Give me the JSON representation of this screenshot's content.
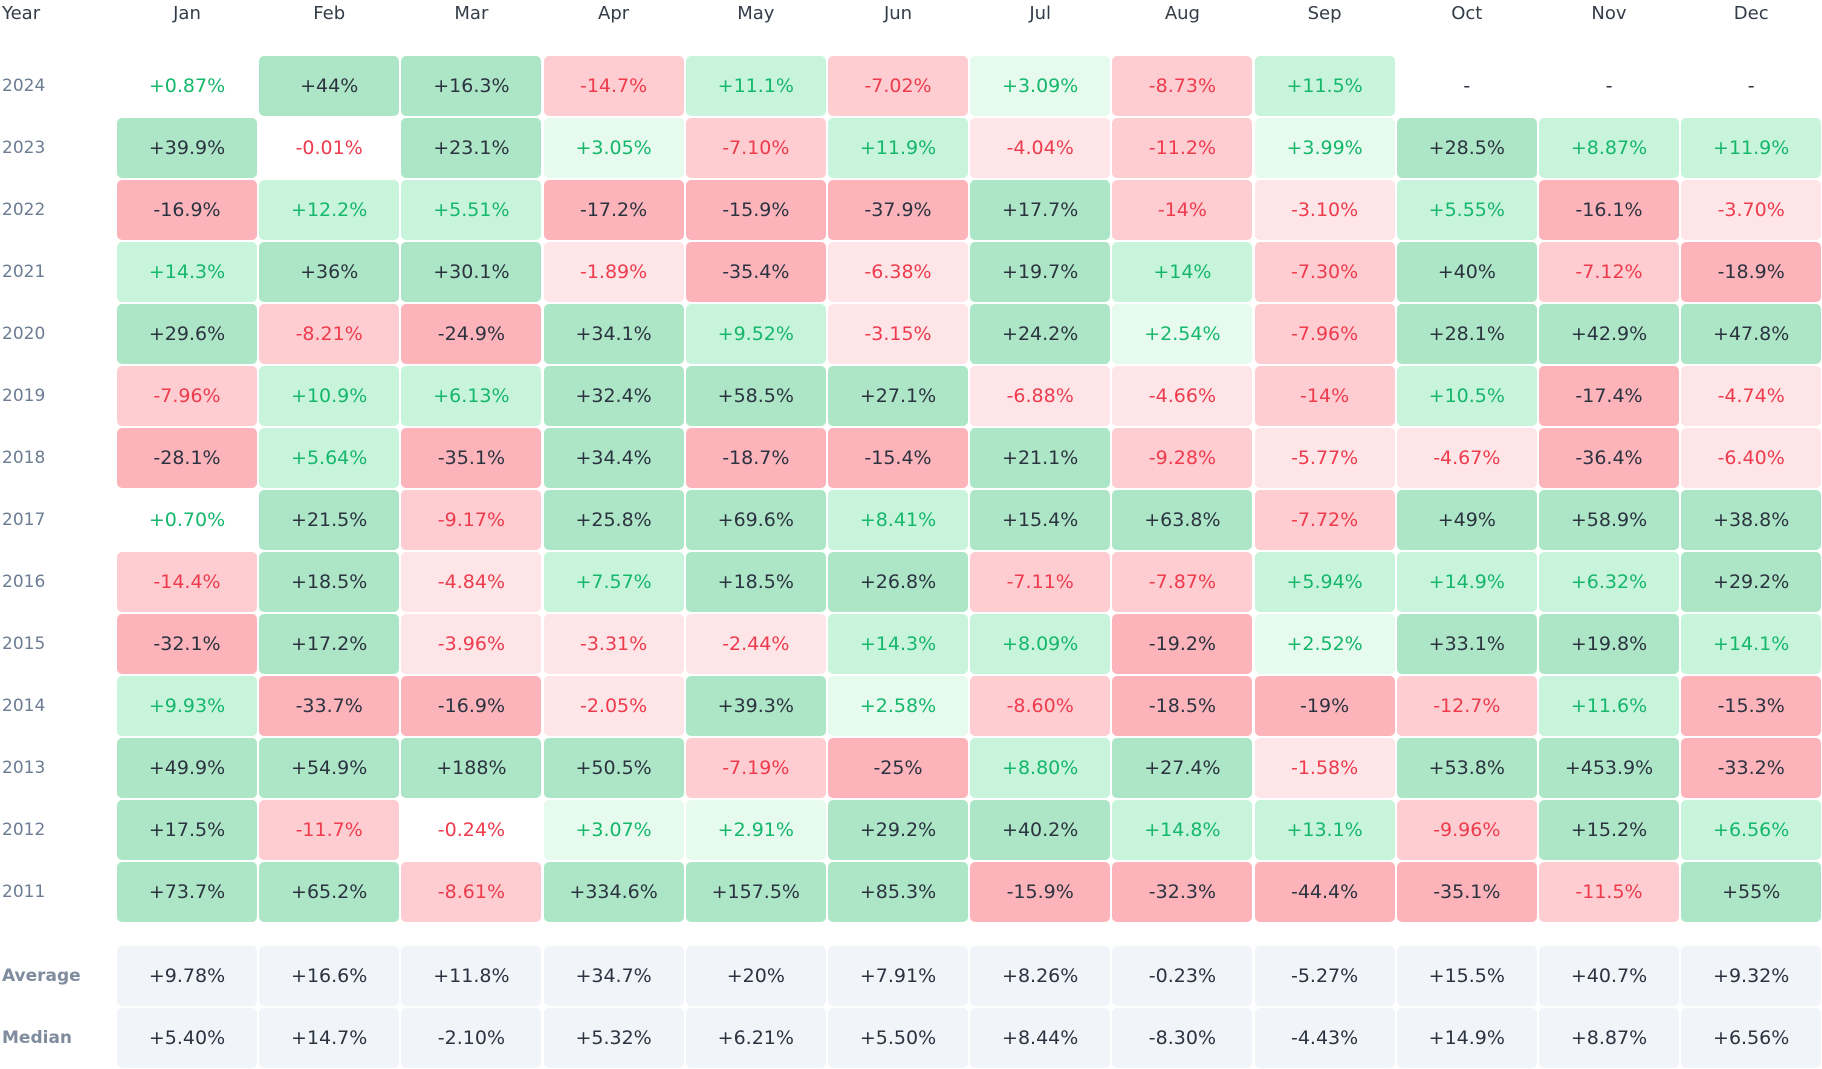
{
  "chart_data": {
    "type": "heatmap",
    "corner_label": "Year",
    "months": [
      "Jan",
      "Feb",
      "Mar",
      "Apr",
      "May",
      "Jun",
      "Jul",
      "Aug",
      "Sep",
      "Oct",
      "Nov",
      "Dec"
    ],
    "rows": [
      {
        "year": "2024",
        "cells": [
          "+0.87%",
          "+44%",
          "+16.3%",
          "-14.7%",
          "+11.1%",
          "-7.02%",
          "+3.09%",
          "-8.73%",
          "+11.5%",
          "-",
          "-",
          "-"
        ]
      },
      {
        "year": "2023",
        "cells": [
          "+39.9%",
          "-0.01%",
          "+23.1%",
          "+3.05%",
          "-7.10%",
          "+11.9%",
          "-4.04%",
          "-11.2%",
          "+3.99%",
          "+28.5%",
          "+8.87%",
          "+11.9%"
        ]
      },
      {
        "year": "2022",
        "cells": [
          "-16.9%",
          "+12.2%",
          "+5.51%",
          "-17.2%",
          "-15.9%",
          "-37.9%",
          "+17.7%",
          "-14%",
          "-3.10%",
          "+5.55%",
          "-16.1%",
          "-3.70%"
        ]
      },
      {
        "year": "2021",
        "cells": [
          "+14.3%",
          "+36%",
          "+30.1%",
          "-1.89%",
          "-35.4%",
          "-6.38%",
          "+19.7%",
          "+14%",
          "-7.30%",
          "+40%",
          "-7.12%",
          "-18.9%"
        ]
      },
      {
        "year": "2020",
        "cells": [
          "+29.6%",
          "-8.21%",
          "-24.9%",
          "+34.1%",
          "+9.52%",
          "-3.15%",
          "+24.2%",
          "+2.54%",
          "-7.96%",
          "+28.1%",
          "+42.9%",
          "+47.8%"
        ]
      },
      {
        "year": "2019",
        "cells": [
          "-7.96%",
          "+10.9%",
          "+6.13%",
          "+32.4%",
          "+58.5%",
          "+27.1%",
          "-6.88%",
          "-4.66%",
          "-14%",
          "+10.5%",
          "-17.4%",
          "-4.74%"
        ]
      },
      {
        "year": "2018",
        "cells": [
          "-28.1%",
          "+5.64%",
          "-35.1%",
          "+34.4%",
          "-18.7%",
          "-15.4%",
          "+21.1%",
          "-9.28%",
          "-5.77%",
          "-4.67%",
          "-36.4%",
          "-6.40%"
        ]
      },
      {
        "year": "2017",
        "cells": [
          "+0.70%",
          "+21.5%",
          "-9.17%",
          "+25.8%",
          "+69.6%",
          "+8.41%",
          "+15.4%",
          "+63.8%",
          "-7.72%",
          "+49%",
          "+58.9%",
          "+38.8%"
        ]
      },
      {
        "year": "2016",
        "cells": [
          "-14.4%",
          "+18.5%",
          "-4.84%",
          "+7.57%",
          "+18.5%",
          "+26.8%",
          "-7.11%",
          "-7.87%",
          "+5.94%",
          "+14.9%",
          "+6.32%",
          "+29.2%"
        ]
      },
      {
        "year": "2015",
        "cells": [
          "-32.1%",
          "+17.2%",
          "-3.96%",
          "-3.31%",
          "-2.44%",
          "+14.3%",
          "+8.09%",
          "-19.2%",
          "+2.52%",
          "+33.1%",
          "+19.8%",
          "+14.1%"
        ]
      },
      {
        "year": "2014",
        "cells": [
          "+9.93%",
          "-33.7%",
          "-16.9%",
          "-2.05%",
          "+39.3%",
          "+2.58%",
          "-8.60%",
          "-18.5%",
          "-19%",
          "-12.7%",
          "+11.6%",
          "-15.3%"
        ]
      },
      {
        "year": "2013",
        "cells": [
          "+49.9%",
          "+54.9%",
          "+188%",
          "+50.5%",
          "-7.19%",
          "-25%",
          "+8.80%",
          "+27.4%",
          "-1.58%",
          "+53.8%",
          "+453.9%",
          "-33.2%"
        ]
      },
      {
        "year": "2012",
        "cells": [
          "+17.5%",
          "-11.7%",
          "-0.24%",
          "+3.07%",
          "+2.91%",
          "+29.2%",
          "+40.2%",
          "+14.8%",
          "+13.1%",
          "-9.96%",
          "+15.2%",
          "+6.56%"
        ]
      },
      {
        "year": "2011",
        "cells": [
          "+73.7%",
          "+65.2%",
          "-8.61%",
          "+334.6%",
          "+157.5%",
          "+85.3%",
          "-15.9%",
          "-32.3%",
          "-44.4%",
          "-35.1%",
          "-11.5%",
          "+55%"
        ]
      }
    ],
    "stats": [
      {
        "label": "Average",
        "cells": [
          "+9.78%",
          "+16.6%",
          "+11.8%",
          "+34.7%",
          "+20%",
          "+7.91%",
          "+8.26%",
          "-0.23%",
          "-5.27%",
          "+15.5%",
          "+40.7%",
          "+9.32%"
        ]
      },
      {
        "label": "Median",
        "cells": [
          "+5.40%",
          "+14.7%",
          "-2.10%",
          "+5.32%",
          "+6.21%",
          "+5.50%",
          "+8.44%",
          "-8.30%",
          "-4.43%",
          "+14.9%",
          "+8.87%",
          "+6.56%"
        ]
      }
    ],
    "colors": {
      "strong_pos_bg": "#ade6c6",
      "strong_pos_text": "#2b3340",
      "mid_pos_bg": "#c9f4dc",
      "mid_pos_text": "#15b76b",
      "light_pos_bg": "#e6fbee",
      "light_pos_text": "#15b76b",
      "strong_neg_bg": "#fdb3ba",
      "strong_neg_text": "#2b3340",
      "mid_neg_bg": "#fdcdd1",
      "mid_neg_text": "#ee3b4d",
      "light_neg_bg": "#fee6e8",
      "light_neg_text": "#ee3b4d",
      "neutral_text_pos": "#15b76b",
      "neutral_text_neg": "#ee3b4d",
      "stat_bg": "#f1f4f9",
      "stat_text": "#2b3340"
    }
  }
}
